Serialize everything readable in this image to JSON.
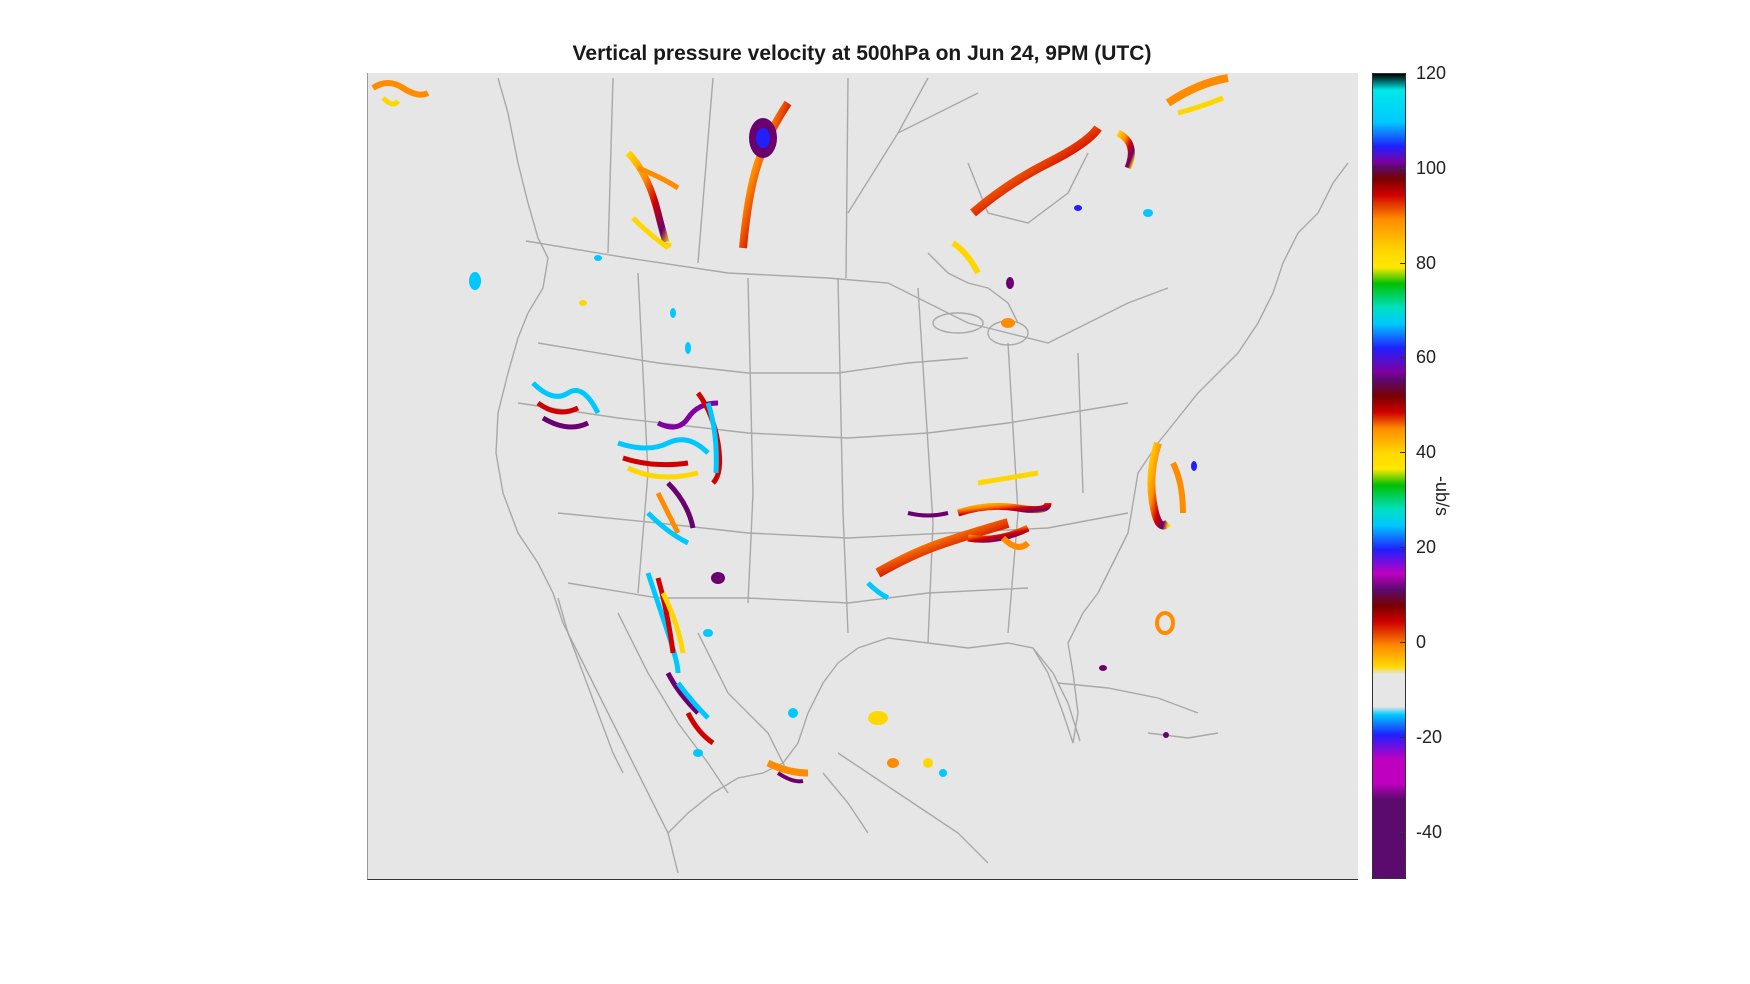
{
  "figure": {
    "title": "Vertical pressure velocity at 500hPa on Jun 24, 9PM (UTC)"
  },
  "colorbar": {
    "label": "-ub/s",
    "range": [
      -50,
      120
    ],
    "ticks": [
      {
        "value": 120,
        "label": "120"
      },
      {
        "value": 100,
        "label": "100"
      },
      {
        "value": 80,
        "label": "80"
      },
      {
        "value": 60,
        "label": "60"
      },
      {
        "value": 40,
        "label": "40"
      },
      {
        "value": 20,
        "label": "20"
      },
      {
        "value": 0,
        "label": "0"
      },
      {
        "value": -20,
        "label": "-20"
      },
      {
        "value": -40,
        "label": "-40"
      }
    ],
    "colors": {
      "dark_purple": "#5b0a6e",
      "magenta": "#c000c0",
      "cyan": "#00c8ff",
      "neutral": "#e6e6e6",
      "yellow": "#ffd700",
      "orange": "#ff8c00",
      "red": "#d00000",
      "dark_red": "#7a0000",
      "purple": "#8000a0",
      "blue": "#2020ff",
      "green": "#00c000",
      "black": "#000000"
    }
  },
  "map": {
    "region": "North America",
    "background": "#e6e6e6",
    "boundary_color": "#a8a8a8"
  }
}
